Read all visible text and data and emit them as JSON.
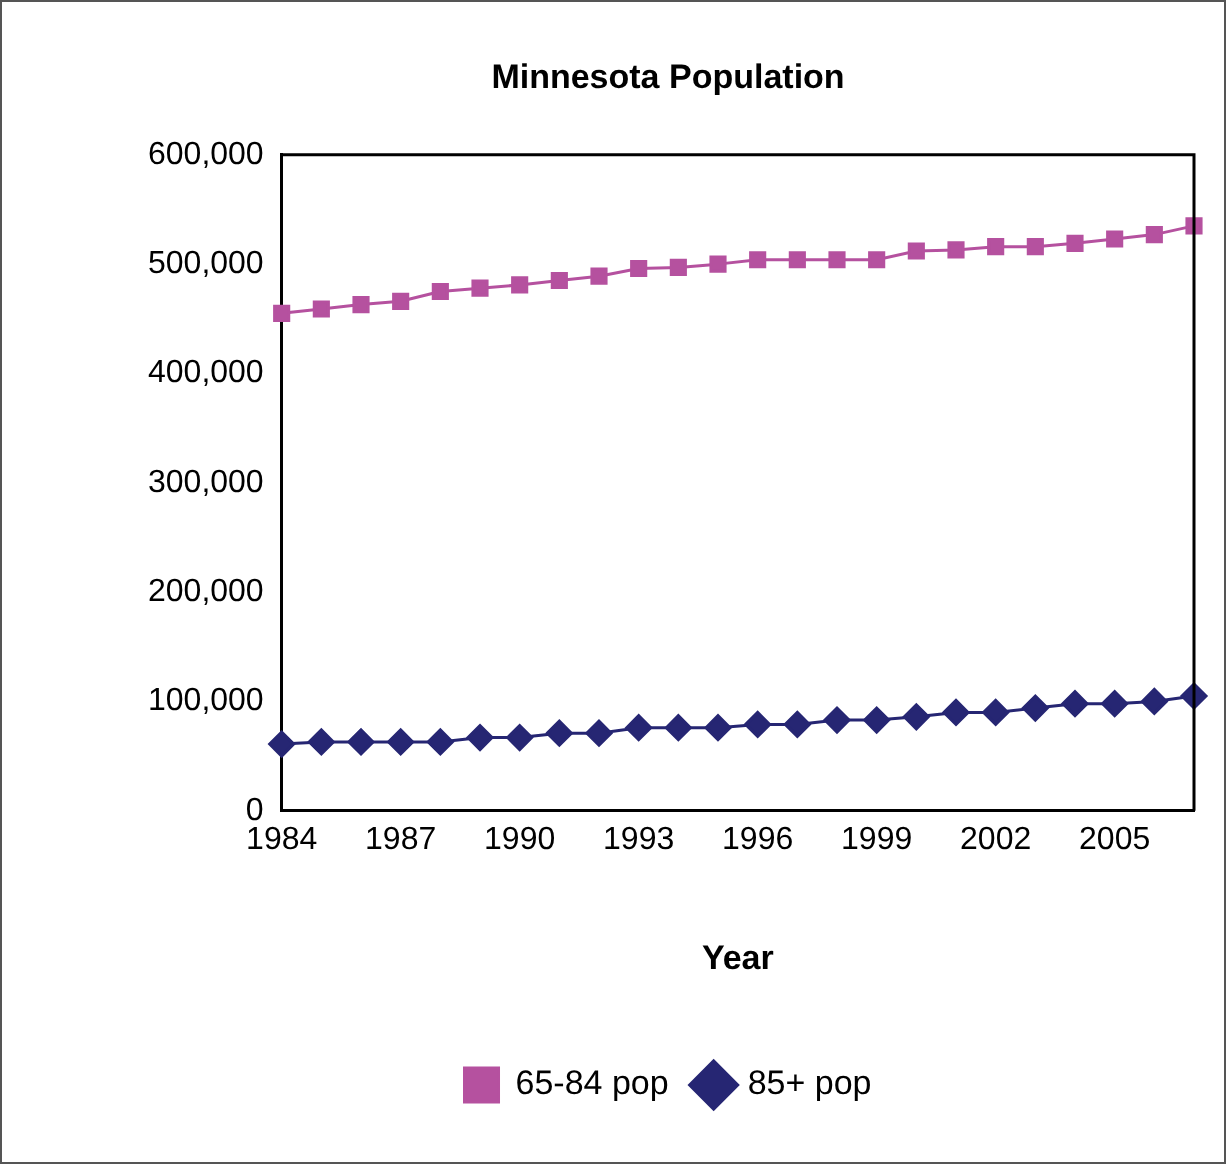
{
  "chart_data": {
    "type": "line",
    "title": "Minnesota Population",
    "xlabel": "Year",
    "categories": [
      "1984",
      null,
      null,
      "1987",
      null,
      null,
      "1990",
      null,
      null,
      "1993",
      null,
      null,
      "1996",
      null,
      null,
      "1999",
      null,
      null,
      "2002",
      null,
      null,
      "2005",
      null,
      null
    ],
    "series": [
      {
        "name": "65-84 pop",
        "color": "#b5519f",
        "marker": "square",
        "values": [
          455000,
          459000,
          463000,
          466000,
          475000,
          478000,
          481000,
          485000,
          489000,
          496000,
          497000,
          500000,
          504000,
          504000,
          504000,
          504000,
          512000,
          513000,
          516000,
          516000,
          519000,
          523000,
          527000,
          535000
        ]
      },
      {
        "name": "85+ pop",
        "color": "#262673",
        "marker": "diamond",
        "values": [
          61000,
          63000,
          63000,
          63000,
          63000,
          67000,
          67000,
          71000,
          71000,
          76000,
          76000,
          76000,
          79000,
          79000,
          83000,
          83000,
          86000,
          90000,
          90000,
          94000,
          98000,
          98000,
          100000,
          105000
        ]
      }
    ],
    "ylim": [
      0,
      600000
    ],
    "yticks": [
      0,
      {
        "value": 100000,
        "label": "100,000"
      },
      {
        "value": 200000,
        "label": "200,000"
      },
      {
        "value": 300000,
        "label": "300,000"
      },
      {
        "value": 400000,
        "label": "400,000"
      },
      {
        "value": 500000,
        "label": "500,000"
      },
      {
        "value": 600000,
        "label": "600,000"
      }
    ],
    "grid": false,
    "legend": "bottom"
  }
}
